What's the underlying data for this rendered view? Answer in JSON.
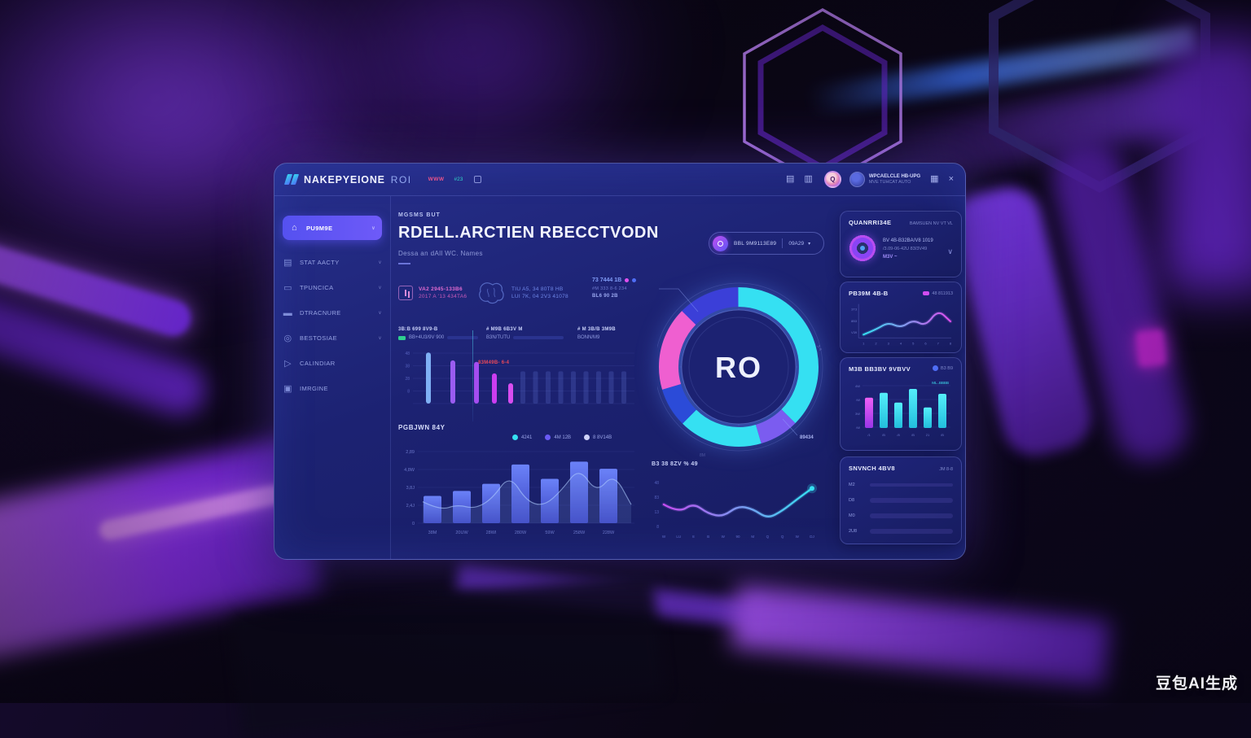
{
  "theme": {
    "accent": "#5a57f5",
    "cyan": "#35e0f2",
    "magenta": "#d84df0",
    "pink": "#ef5fd0",
    "panel_bg": "#1c2272"
  },
  "header": {
    "brand": "NAKEPYEIONE",
    "brand_suffix": "ROI",
    "tag_pink": "WWW",
    "tag_teal": "#23",
    "avatar_initial": "Q",
    "user_name": "WPCAELCLE HB-UPG",
    "user_meta": "MVE TUHCAT AUTO"
  },
  "sidebar": {
    "items": [
      {
        "label": "PU9M9E",
        "icon": "home",
        "active": true,
        "chevron": true
      },
      {
        "label": "STAT AACTY",
        "icon": "stats",
        "active": false,
        "chevron": true
      },
      {
        "label": "TPUNCICA",
        "icon": "doc",
        "active": false,
        "chevron": true
      },
      {
        "label": "DTRACNURE",
        "icon": "card",
        "active": false,
        "chevron": true
      },
      {
        "label": "BESTOSIAE",
        "icon": "globe",
        "active": false,
        "chevron": true
      },
      {
        "label": "CALINDIAR",
        "icon": "send",
        "active": false,
        "chevron": false
      },
      {
        "label": "IMRGINE",
        "icon": "archive",
        "active": false,
        "chevron": false
      }
    ]
  },
  "main": {
    "eyebrow": "MGSMS BUT",
    "title": "RDELL.ARCTIEN RBECCTVODN",
    "subtitle": "Dessa an dAll WC. Names",
    "pill_label": "BBL 9M9113E89",
    "pill_value": "09A29",
    "info1_line1": "VA2 2945-133B6",
    "info1_line2": "2017 A '13 434TA6",
    "info2_line1": "TIU A5, 34 80T8 HB",
    "info2_line2": "LUI 7K, 04 2V3 41078",
    "callout_title": "73 7444 1B",
    "callout_line1": "#M 333 8-6 234",
    "callout_line2": "BL6 90 2B",
    "stats": [
      {
        "label": "3B:B 699 8V9-B",
        "value": "BB+4U3/9V 900",
        "pct": 70
      },
      {
        "label": "# M9B 6B3V M",
        "value": "B3N/TUTU",
        "pct": 85
      },
      {
        "label": "# M 3B/B 3M9B",
        "value": "BONN/M9",
        "pct": 0
      }
    ],
    "annotation": "83M49B- 6-4"
  },
  "right_panel": {
    "card_summary": {
      "title": "QUANRRI34E",
      "meta": "BAMSUEN NV VT VL",
      "line1": "BV 4B-B32BA/V8 1019",
      "line2": "/3.09-06-42U 83/3V49",
      "link": "M3V ~"
    },
    "card_trend": {
      "title": "PB39M 4B-B",
      "legend_label": "48 811913"
    },
    "card_bars": {
      "title": "M3B BB3BV 9VBVV",
      "meta": "B3 B9"
    },
    "card_search": {
      "title": "SNVNCH 4BV8",
      "meta": "JM 8-8"
    }
  },
  "chart_data": [
    {
      "id": "engagement-bars",
      "type": "bar",
      "ylabels": [
        "48",
        "38",
        "28",
        "8"
      ],
      "ylim": [
        0,
        100
      ],
      "grid": true,
      "bars": [
        {
          "value": 98,
          "color": "#7fb0f5"
        },
        {
          "value": 83,
          "color": "#9a5cf0"
        },
        {
          "value": 80,
          "color": "#a44df0"
        },
        {
          "value": 58,
          "color": "#cb3df0"
        },
        {
          "value": 39,
          "color": "#d84df0"
        }
      ],
      "faint_bars": {
        "count": 9,
        "value": 62
      }
    },
    {
      "id": "roi-donut",
      "type": "donut",
      "center_label": "RO",
      "callout_label": "89434",
      "tick_labels": [
        "3-4",
        "8M"
      ],
      "segments": [
        {
          "value": 37.5,
          "color": "#35e0f2"
        },
        {
          "value": 8,
          "color": "#7b5cf0"
        },
        {
          "value": 17,
          "color": "#35e0f2"
        },
        {
          "value": 8,
          "color": "#2b4bd8"
        },
        {
          "value": 17,
          "color": "#ef5fd0"
        },
        {
          "value": 12.5,
          "color": "#3b3fd8"
        }
      ]
    },
    {
      "id": "volume-bars",
      "type": "bar+area",
      "title": "PGBJWN 84Y",
      "ylim": [
        0,
        100
      ],
      "grid": true,
      "categories": [
        "38M",
        "20UW",
        "28WI",
        "280W",
        "59W",
        "258W",
        "228W"
      ],
      "values": [
        38,
        45,
        55,
        82,
        62,
        86,
        76
      ],
      "area_values": [
        30,
        18,
        26,
        20,
        34,
        68,
        30,
        24,
        46,
        78,
        42,
        70,
        26
      ],
      "ylabels": [
        "2,89",
        "4,8W",
        "3,8J",
        "2,4J",
        "0"
      ],
      "legend": [
        {
          "label": "4241",
          "color": "#35e0f2"
        },
        {
          "label": "4M 12B",
          "color": "#6a5af5"
        },
        {
          "label": "8 8V14B",
          "color": "#cfd2f8"
        }
      ],
      "bar_color_top": "#6b82f8",
      "bar_color_bottom": "#3a43c2"
    },
    {
      "id": "trend-line",
      "type": "line",
      "title": "B3 38 8ZV % 49",
      "ylim": [
        0,
        100
      ],
      "x": [
        "W",
        "LU",
        "8",
        "B",
        "W",
        "90",
        "M",
        "Q",
        "Q",
        "W",
        "DJ"
      ],
      "values": [
        55,
        38,
        58,
        36,
        30,
        52,
        46,
        26,
        42,
        66,
        88
      ],
      "ylabels": [
        "48",
        "83",
        "13",
        "8"
      ],
      "color_start": "#c44df0",
      "color_end": "#35e0f2"
    },
    {
      "id": "card-line",
      "type": "line",
      "ylim": [
        0,
        80
      ],
      "x": [
        "1",
        "2",
        "3",
        "4",
        "5",
        "6",
        "7",
        "8"
      ],
      "values": [
        10,
        22,
        40,
        26,
        46,
        30,
        70,
        42
      ],
      "ylabels": [
        "3T3",
        "8B3",
        "V39"
      ],
      "color_start": "#35e0f2",
      "color_end": "#e14ff0"
    },
    {
      "id": "card-bars",
      "type": "bar",
      "ylim": [
        0,
        100
      ],
      "categories": [
        "/1",
        "/B",
        "/8",
        "/B",
        "21",
        "/B"
      ],
      "values": [
        62,
        72,
        52,
        80,
        42,
        70
      ],
      "ylabels": [
        "4W",
        "/W",
        "3W",
        "/W"
      ],
      "series_label": "ML..BBBB",
      "highlight_index": 0,
      "highlight_color": "#ef5ff5",
      "bar_color": "#3fe0f0"
    },
    {
      "id": "card-progress",
      "type": "progress",
      "rows": [
        {
          "label": "M2",
          "value": 20,
          "dim": true
        },
        {
          "label": "D8",
          "value": 100,
          "dim": false
        },
        {
          "label": "M0",
          "value": 58,
          "dim": false
        },
        {
          "label": "2U8",
          "value": 97,
          "dim": false
        }
      ]
    }
  ],
  "watermark": "豆包AI生成"
}
